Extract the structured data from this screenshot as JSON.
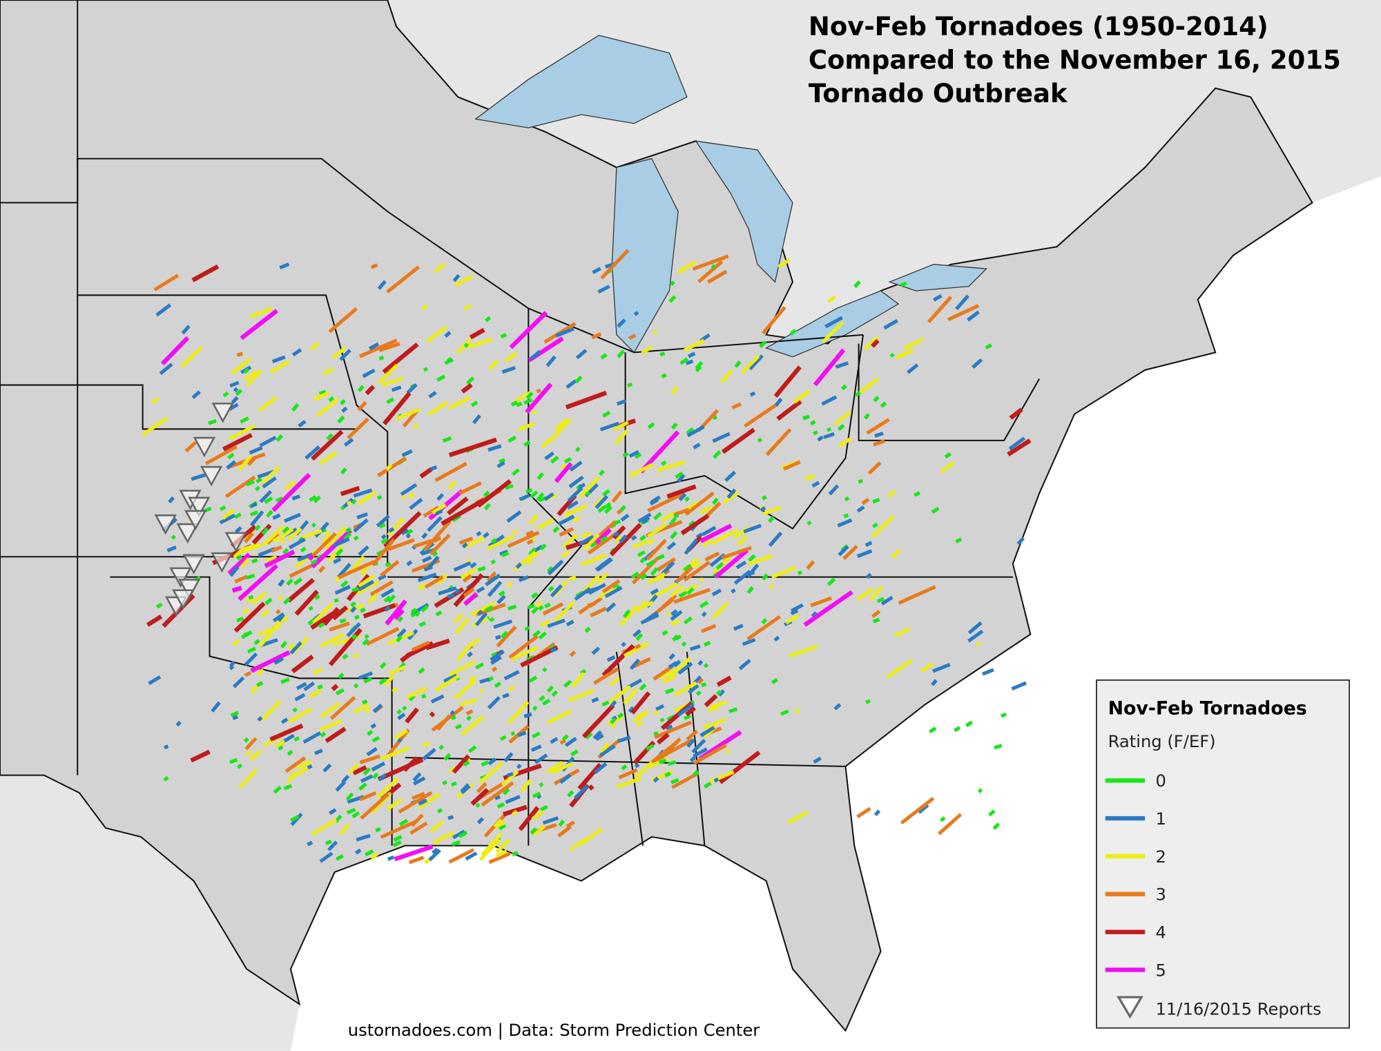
{
  "title_lines": [
    "Nov-Feb Tornadoes (1950-2014)",
    "Compared to the November 16, 2015",
    "Tornado Outbreak"
  ],
  "credit": "ustornadoes.com | Data: Storm Prediction Center",
  "legend": {
    "title": "Nov-Feb Tornadoes",
    "subtitle": "Rating (F/EF)",
    "items": [
      {
        "label": "0",
        "color": "#19e619"
      },
      {
        "label": "1",
        "color": "#2b7bc4"
      },
      {
        "label": "2",
        "color": "#eded12"
      },
      {
        "label": "3",
        "color": "#e87a1c"
      },
      {
        "label": "4",
        "color": "#bf1c1c"
      },
      {
        "label": "5",
        "color": "#f20ff2"
      }
    ],
    "reports_label": "11/16/2015 Reports"
  }
}
